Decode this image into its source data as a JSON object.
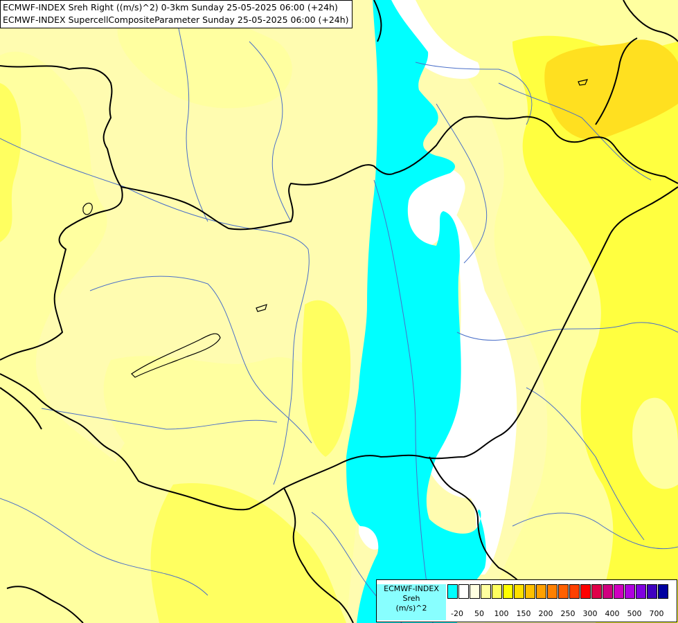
{
  "titles": {
    "line1": "ECMWF-INDEX Sreh Right ((m/s)^2) 0-3km Sunday 25-05-2025 06:00 (+24h)",
    "line2": "ECMWF-INDEX SupercellCompositeParameter Sunday 25-05-2025 06:00 (+24h)"
  },
  "legend": {
    "source": "ECMWF-INDEX",
    "variable": "Sreh",
    "unit": "(m/s)^2",
    "ticks": [
      "-20",
      "50",
      "100",
      "150",
      "200",
      "250",
      "300",
      "400",
      "500",
      "700"
    ],
    "swatch_colors": [
      "#00ffff",
      "#ffffff",
      "#ffffe0",
      "#ffffa0",
      "#ffff60",
      "#ffff00",
      "#ffe000",
      "#ffc000",
      "#ffa000",
      "#ff8000",
      "#ff6000",
      "#ff4000",
      "#ff0000",
      "#e0004a",
      "#d00080",
      "#d000c0",
      "#b000e0",
      "#8000e0",
      "#4000c0",
      "#0000a0"
    ]
  },
  "colors": {
    "cyan_band": "#00ffff",
    "white_area": "#ffffff",
    "pale_yellow": "#fffcb0",
    "light_yellow": "#ffffa0",
    "yellow": "#ffff50",
    "gold": "#ffe020",
    "border_line": "#000000",
    "river_line": "#4a6fc8"
  }
}
